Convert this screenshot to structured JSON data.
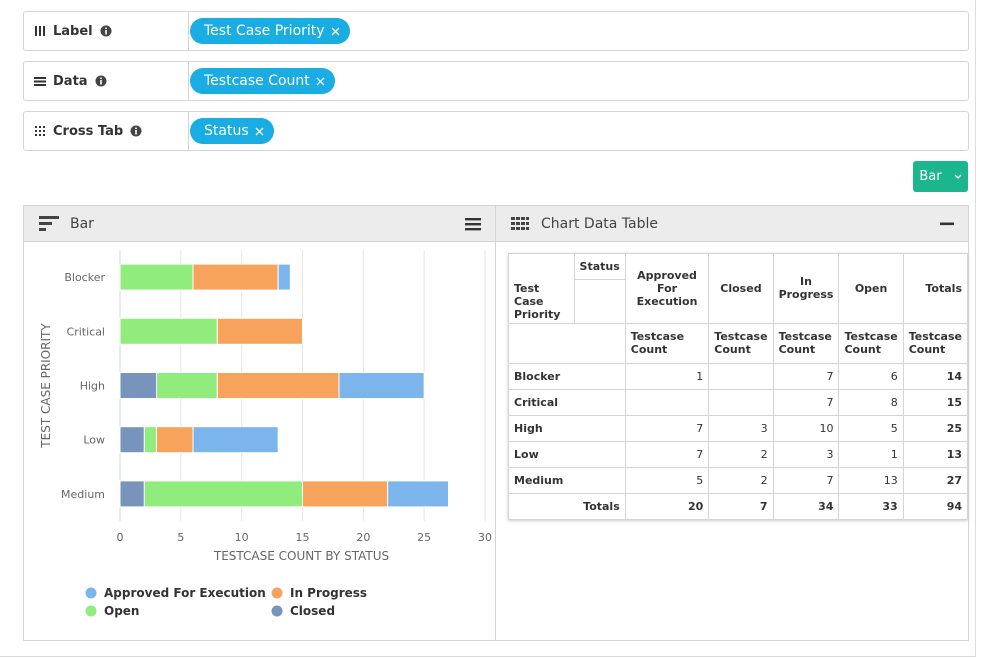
{
  "fields": [
    {
      "label": "Label",
      "chip": "Test Case Priority"
    },
    {
      "label": "Data",
      "chip": "Testcase Count"
    },
    {
      "label": "Cross Tab",
      "chip": "Status"
    }
  ],
  "chart_button": "Bar",
  "chart_panel_title": "Bar",
  "table_panel_title": "Chart Data Table",
  "chart_data": {
    "type": "bar",
    "orientation": "horizontal",
    "stacked": true,
    "categories": [
      "Blocker",
      "Critical",
      "High",
      "Low",
      "Medium"
    ],
    "series": [
      {
        "name": "Approved For Execution",
        "color": "#7cb5ec",
        "values": [
          1,
          null,
          7,
          7,
          5
        ]
      },
      {
        "name": "In Progress",
        "color": "#f7a35c",
        "values": [
          7,
          7,
          10,
          3,
          7
        ]
      },
      {
        "name": "Open",
        "color": "#90ed7d",
        "values": [
          6,
          8,
          5,
          1,
          13
        ]
      },
      {
        "name": "Closed",
        "color": "#7894bd",
        "values": [
          null,
          null,
          3,
          2,
          2
        ]
      }
    ],
    "xlim": [
      0,
      30
    ],
    "xticks": [
      0,
      5,
      10,
      15,
      20,
      25,
      30
    ],
    "x_label": "TESTCASE COUNT BY STATUS",
    "y_label": "TEST CASE PRIORITY",
    "grid": true,
    "legend": "bottom"
  },
  "table": {
    "corner_column": "Status",
    "corner_row": "Test Case Priority",
    "columns": [
      "Approved For Execution",
      "Closed",
      "In Progress",
      "Open",
      "Totals"
    ],
    "measures": [
      "Testcase Count",
      "Testcase Count",
      "Testcase Count",
      "Testcase Count",
      "Testcase Count"
    ],
    "rows": [
      {
        "label": "Blocker",
        "cells": [
          1,
          null,
          7,
          6,
          14
        ]
      },
      {
        "label": "Critical",
        "cells": [
          null,
          null,
          7,
          8,
          15
        ]
      },
      {
        "label": "High",
        "cells": [
          7,
          3,
          10,
          5,
          25
        ]
      },
      {
        "label": "Low",
        "cells": [
          7,
          2,
          3,
          1,
          13
        ]
      },
      {
        "label": "Medium",
        "cells": [
          5,
          2,
          7,
          13,
          27
        ]
      }
    ],
    "totals": {
      "label": "Totals",
      "cells": [
        20,
        7,
        34,
        33,
        94
      ]
    }
  }
}
